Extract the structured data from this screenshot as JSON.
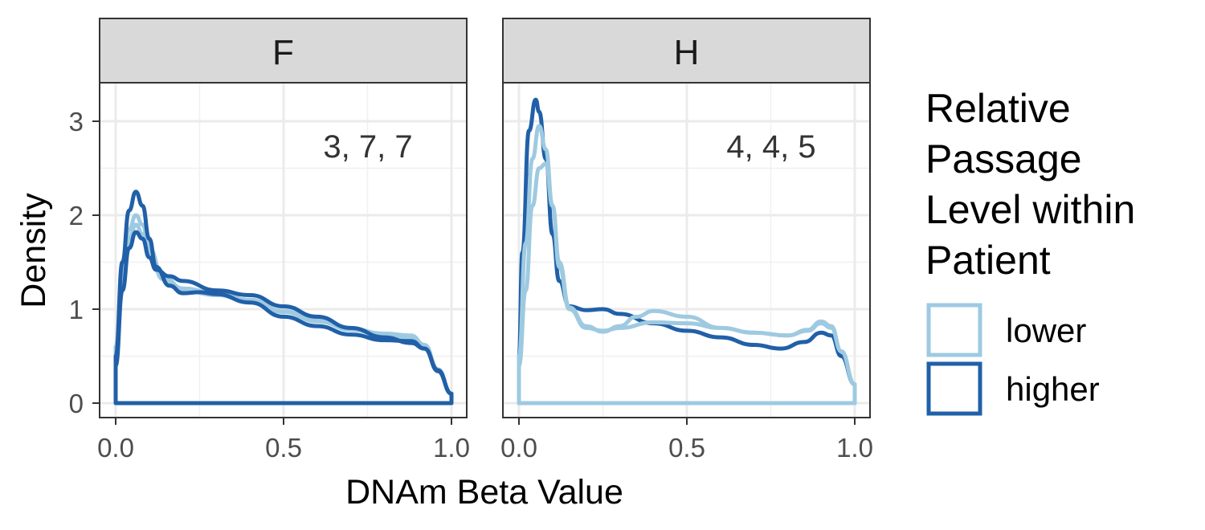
{
  "chart_data": {
    "type": "line",
    "chart_kind": "density (faceted)",
    "xlabel": "DNAm Beta Value",
    "ylabel": "Density",
    "xlim": [
      0,
      1
    ],
    "ylim": [
      0,
      3.3
    ],
    "x_ticks": [
      0.0,
      0.5,
      1.0
    ],
    "x_tick_labels": [
      "0.0",
      "0.5",
      "1.0"
    ],
    "y_ticks": [
      0,
      1,
      2,
      3
    ],
    "y_tick_labels": [
      "0",
      "1",
      "2",
      "3"
    ],
    "grid": true,
    "legend": {
      "title_lines": [
        "Relative",
        "Passage",
        "Level within",
        "Patient"
      ],
      "placement": "right",
      "entries": [
        {
          "label": "lower",
          "color": "#9ECAE1"
        },
        {
          "label": "higher",
          "color": "#2160A8"
        }
      ]
    },
    "facets": [
      {
        "strip_label": "F",
        "annotation": "3, 7, 7",
        "series": [
          {
            "group": "lower",
            "color": "#9ECAE1",
            "x": [
              0,
              0.02,
              0.04,
              0.06,
              0.08,
              0.1,
              0.14,
              0.2,
              0.3,
              0.4,
              0.5,
              0.6,
              0.7,
              0.8,
              0.88,
              0.92,
              0.96,
              1.0
            ],
            "y": [
              0.6,
              1.4,
              1.85,
              2.0,
              1.9,
              1.65,
              1.35,
              1.22,
              1.17,
              1.1,
              0.98,
              0.88,
              0.78,
              0.72,
              0.68,
              0.6,
              0.35,
              0.1
            ]
          },
          {
            "group": "lower",
            "color": "#9ECAE1",
            "x": [
              0,
              0.02,
              0.04,
              0.06,
              0.08,
              0.1,
              0.14,
              0.2,
              0.3,
              0.4,
              0.5,
              0.6,
              0.7,
              0.8,
              0.88,
              0.92,
              0.96,
              1.0
            ],
            "y": [
              0.6,
              1.3,
              1.75,
              1.9,
              1.8,
              1.6,
              1.32,
              1.2,
              1.15,
              1.08,
              0.97,
              0.87,
              0.79,
              0.74,
              0.72,
              0.62,
              0.36,
              0.1
            ]
          },
          {
            "group": "higher",
            "color": "#2160A8",
            "x": [
              0,
              0.02,
              0.04,
              0.06,
              0.08,
              0.1,
              0.12,
              0.16,
              0.2,
              0.25,
              0.3,
              0.4,
              0.5,
              0.6,
              0.7,
              0.8,
              0.88,
              0.92,
              0.96,
              1.0
            ],
            "y": [
              0.5,
              1.5,
              2.05,
              2.25,
              2.1,
              1.75,
              1.45,
              1.25,
              1.17,
              1.18,
              1.16,
              1.07,
              0.92,
              0.82,
              0.73,
              0.67,
              0.66,
              0.58,
              0.35,
              0.1
            ]
          },
          {
            "group": "higher",
            "color": "#2160A8",
            "x": [
              0,
              0.02,
              0.04,
              0.06,
              0.08,
              0.1,
              0.12,
              0.16,
              0.2,
              0.3,
              0.4,
              0.5,
              0.6,
              0.7,
              0.8,
              0.88,
              0.92,
              0.96,
              1.0
            ],
            "y": [
              0.4,
              1.2,
              1.65,
              1.82,
              1.75,
              1.55,
              1.42,
              1.35,
              1.3,
              1.2,
              1.15,
              1.03,
              0.92,
              0.8,
              0.7,
              0.64,
              0.58,
              0.34,
              0.1
            ]
          }
        ]
      },
      {
        "strip_label": "H",
        "annotation": "4, 4, 5",
        "series": [
          {
            "group": "higher",
            "color": "#2160A8",
            "x": [
              0,
              0.01,
              0.03,
              0.05,
              0.06,
              0.08,
              0.1,
              0.12,
              0.15,
              0.2,
              0.25,
              0.3,
              0.4,
              0.5,
              0.6,
              0.7,
              0.78,
              0.85,
              0.9,
              0.93,
              0.96,
              1.0
            ],
            "y": [
              0.5,
              1.6,
              2.9,
              3.23,
              3.1,
              2.6,
              1.8,
              1.3,
              1.03,
              0.99,
              1.0,
              0.95,
              0.85,
              0.77,
              0.7,
              0.62,
              0.58,
              0.65,
              0.75,
              0.72,
              0.5,
              0.2
            ]
          },
          {
            "group": "lower",
            "color": "#9ECAE1",
            "x": [
              0,
              0.02,
              0.04,
              0.06,
              0.08,
              0.1,
              0.12,
              0.15,
              0.2,
              0.25,
              0.3,
              0.35,
              0.4,
              0.5,
              0.6,
              0.7,
              0.8,
              0.86,
              0.9,
              0.93,
              0.96,
              1.0
            ],
            "y": [
              0.5,
              1.7,
              2.6,
              2.95,
              2.7,
              2.1,
              1.5,
              1.02,
              0.82,
              0.76,
              0.82,
              0.92,
              0.98,
              0.92,
              0.8,
              0.75,
              0.72,
              0.78,
              0.87,
              0.82,
              0.55,
              0.2
            ]
          },
          {
            "group": "lower",
            "color": "#9ECAE1",
            "x": [
              0,
              0.02,
              0.04,
              0.06,
              0.08,
              0.1,
              0.12,
              0.15,
              0.2,
              0.25,
              0.3,
              0.4,
              0.5,
              0.6,
              0.7,
              0.8,
              0.86,
              0.9,
              0.93,
              0.96,
              1.0
            ],
            "y": [
              0.4,
              1.2,
              2.1,
              2.5,
              2.55,
              2.1,
              1.45,
              1.0,
              0.8,
              0.77,
              0.8,
              0.86,
              0.85,
              0.8,
              0.75,
              0.72,
              0.77,
              0.85,
              0.8,
              0.55,
              0.2
            ]
          }
        ]
      }
    ]
  }
}
